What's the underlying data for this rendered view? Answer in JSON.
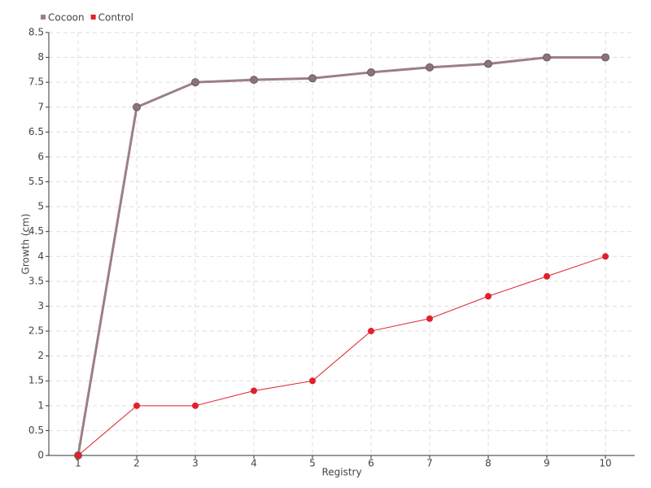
{
  "chart_data": {
    "type": "line",
    "x_label": "Registry",
    "y_label": "Growth (cm)",
    "categories": [
      "1",
      "2",
      "3",
      "4",
      "5",
      "6",
      "7",
      "8",
      "9",
      "10"
    ],
    "series": [
      {
        "name": "Cocoon",
        "color": "#9c7f84",
        "values": [
          0,
          7.0,
          7.5,
          7.55,
          7.58,
          7.7,
          7.8,
          7.87,
          8.0,
          8.0
        ]
      },
      {
        "name": "Control",
        "color": "#e0202a",
        "values": [
          0,
          1,
          1,
          1.3,
          1.5,
          2.5,
          2.75,
          3.2,
          3.6,
          4
        ]
      }
    ],
    "ylim": [
      0,
      8.5
    ],
    "yticks": [
      0,
      0.5,
      1,
      1.5,
      2,
      2.5,
      3,
      3.5,
      4,
      4.5,
      5,
      5.5,
      6,
      6.5,
      7,
      7.5,
      8,
      8.5
    ],
    "grid": true,
    "legend": "top-left"
  }
}
